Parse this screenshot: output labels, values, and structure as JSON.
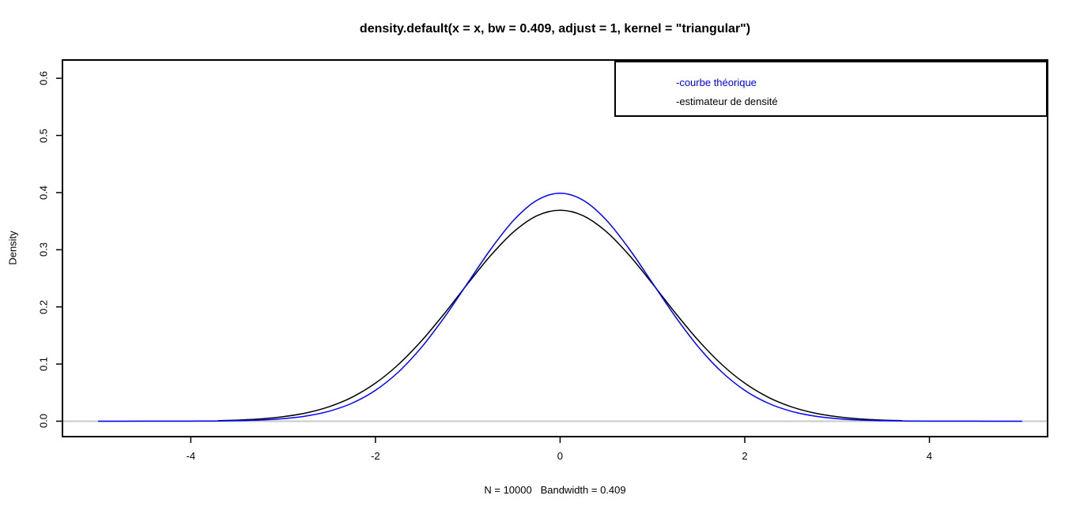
{
  "window": {
    "background": "#ffffff"
  },
  "chart_data": {
    "type": "line",
    "title": "density.default(x = x, bw = 0.409, adjust = 1, kernel = \"triangular\")",
    "xlabel": "N = 10000   Bandwidth = 0.409",
    "ylabel": "Density",
    "xlim": [
      -5.39,
      5.28
    ],
    "ylim": [
      -0.027,
      0.632
    ],
    "grid": "off",
    "background": "#ffffff",
    "box_color": "#000000",
    "x_ticks": {
      "values": [
        -4,
        -2,
        0,
        2,
        4
      ],
      "labels": [
        "-4",
        "-2",
        "0",
        "2",
        "4"
      ]
    },
    "y_ticks": {
      "values": [
        0,
        0.1,
        0.2,
        0.3,
        0.4,
        0.5,
        0.6
      ],
      "labels": [
        "0.0",
        "0.1",
        "0.2",
        "0.3",
        "0.4",
        "0.5",
        "0.6"
      ]
    },
    "zero_line": {
      "y": 0,
      "color": "#c8c8c8"
    },
    "legend": {
      "position": "topright",
      "entries": [
        {
          "label": "-courbe théorique",
          "color": "#0000ff"
        },
        {
          "label": "-estimateur de densité",
          "color": "#000000"
        }
      ]
    },
    "series": [
      {
        "name": "estimateur de densité",
        "color": "#000000",
        "peak": 0.369,
        "x": [
          -3.7,
          -3.5,
          -3.25,
          -3,
          -2.75,
          -2.5,
          -2.25,
          -2,
          -1.75,
          -1.5,
          -1.25,
          -1,
          -0.75,
          -0.5,
          -0.25,
          0,
          0.25,
          0.5,
          0.75,
          1,
          1.25,
          1.5,
          1.75,
          2,
          2.25,
          2.5,
          2.75,
          3,
          3.25,
          3.5,
          3.7
        ],
        "y": [
          0.00105,
          0.00194,
          0.004,
          0.00782,
          0.01446,
          0.02537,
          0.0422,
          0.06654,
          0.09943,
          0.14084,
          0.18907,
          0.2406,
          0.29018,
          0.33176,
          0.35951,
          0.36927,
          0.35951,
          0.33176,
          0.29018,
          0.2406,
          0.18907,
          0.14084,
          0.09943,
          0.06654,
          0.0422,
          0.02537,
          0.01446,
          0.00782,
          0.004,
          0.00194,
          0.00105
        ]
      },
      {
        "name": "courbe théorique",
        "color": "#0000ff",
        "peak": 0.3989,
        "x": [
          -5,
          -4.75,
          -4.5,
          -4.25,
          -4,
          -3.75,
          -3.5,
          -3.25,
          -3,
          -2.75,
          -2.5,
          -2.25,
          -2,
          -1.75,
          -1.5,
          -1.25,
          -1,
          -0.75,
          -0.5,
          -0.25,
          0,
          0.25,
          0.5,
          0.75,
          1,
          1.25,
          1.5,
          1.75,
          2,
          2.25,
          2.5,
          2.75,
          3,
          3.25,
          3.5,
          3.75,
          4,
          4.25,
          4.5,
          4.75,
          5
        ],
        "y": [
          1.5e-06,
          5e-06,
          1.6e-05,
          4.78e-05,
          0.000134,
          0.000353,
          0.000873,
          0.002029,
          0.004432,
          0.009094,
          0.017528,
          0.03174,
          0.053991,
          0.086277,
          0.129518,
          0.182649,
          0.241971,
          0.301137,
          0.352065,
          0.386668,
          0.398942,
          0.386668,
          0.352065,
          0.301137,
          0.241971,
          0.182649,
          0.129518,
          0.086277,
          0.053991,
          0.03174,
          0.017528,
          0.009094,
          0.004432,
          0.002029,
          0.000873,
          0.000353,
          0.000134,
          4.78e-05,
          1.6e-05,
          5e-06,
          1.5e-06
        ]
      }
    ]
  }
}
